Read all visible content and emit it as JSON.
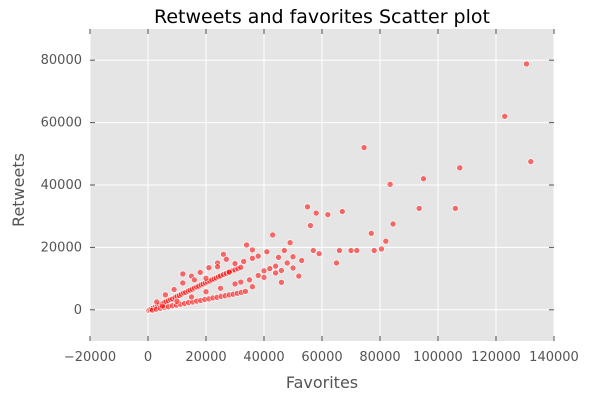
{
  "chart_data": {
    "type": "scatter",
    "title": "Retweets and favorites Scatter plot",
    "xlabel": "Favorites",
    "ylabel": "Retweets",
    "xlim": [
      -20000,
      140000
    ],
    "ylim": [
      -10000,
      90000
    ],
    "xticks": [
      -20000,
      0,
      20000,
      40000,
      60000,
      80000,
      100000,
      120000,
      140000
    ],
    "yticks": [
      0,
      20000,
      40000,
      60000,
      80000
    ],
    "grid": true,
    "colors": {
      "background": "#e5e5e5",
      "grid": "#ffffff",
      "marker": "#ff0000"
    },
    "series": [
      {
        "points": [
          [
            300,
            -200
          ],
          [
            700,
            100
          ],
          [
            1200,
            300
          ],
          [
            1800,
            600
          ],
          [
            2500,
            900
          ],
          [
            3200,
            1200
          ],
          [
            4000,
            1600
          ],
          [
            4800,
            1800
          ],
          [
            5500,
            2300
          ],
          [
            6200,
            2600
          ],
          [
            7000,
            2900
          ],
          [
            7800,
            3300
          ],
          [
            8500,
            3500
          ],
          [
            9300,
            3900
          ],
          [
            10000,
            4300
          ],
          [
            10800,
            4600
          ],
          [
            11500,
            5000
          ],
          [
            12300,
            5400
          ],
          [
            13000,
            5600
          ],
          [
            13800,
            6000
          ],
          [
            14500,
            6300
          ],
          [
            15300,
            6600
          ],
          [
            16000,
            7000
          ],
          [
            16800,
            7300
          ],
          [
            17500,
            7600
          ],
          [
            18300,
            8000
          ],
          [
            19000,
            8300
          ],
          [
            19800,
            8600
          ],
          [
            20500,
            9000
          ],
          [
            21300,
            9200
          ],
          [
            22000,
            9600
          ],
          [
            22800,
            9900
          ],
          [
            23500,
            10200
          ],
          [
            24300,
            10600
          ],
          [
            25000,
            10900
          ],
          [
            26000,
            11300
          ],
          [
            27000,
            11700
          ],
          [
            28000,
            12100
          ],
          [
            29000,
            12500
          ],
          [
            30000,
            12800
          ],
          [
            31000,
            13200
          ],
          [
            32000,
            13600
          ],
          [
            1500,
            -100
          ],
          [
            2800,
            200
          ],
          [
            4200,
            500
          ],
          [
            5600,
            800
          ],
          [
            7000,
            1000
          ],
          [
            8400,
            1300
          ],
          [
            9800,
            1500
          ],
          [
            11200,
            1800
          ],
          [
            12600,
            2000
          ],
          [
            14000,
            2300
          ],
          [
            15400,
            2500
          ],
          [
            16800,
            2800
          ],
          [
            18200,
            3000
          ],
          [
            19600,
            3300
          ],
          [
            21000,
            3500
          ],
          [
            22400,
            3800
          ],
          [
            23800,
            4000
          ],
          [
            25200,
            4300
          ],
          [
            26600,
            4500
          ],
          [
            28000,
            4800
          ],
          [
            29400,
            5000
          ],
          [
            30800,
            5300
          ],
          [
            32200,
            5600
          ],
          [
            33600,
            5900
          ],
          [
            3000,
            2500
          ],
          [
            6000,
            4800
          ],
          [
            9000,
            6500
          ],
          [
            12000,
            8600
          ],
          [
            15000,
            10800
          ],
          [
            18000,
            12000
          ],
          [
            21000,
            13500
          ],
          [
            24000,
            15000
          ],
          [
            27000,
            16200
          ],
          [
            30000,
            14800
          ],
          [
            33000,
            15500
          ],
          [
            36000,
            16500
          ],
          [
            5000,
            1200
          ],
          [
            10000,
            2700
          ],
          [
            15000,
            4100
          ],
          [
            20000,
            5800
          ],
          [
            25000,
            6900
          ],
          [
            30000,
            8300
          ],
          [
            35000,
            9600
          ],
          [
            38000,
            11000
          ],
          [
            40000,
            12500
          ],
          [
            42000,
            13200
          ],
          [
            44000,
            14000
          ],
          [
            46000,
            12600
          ],
          [
            34000,
            20800
          ],
          [
            36000,
            19200
          ],
          [
            38000,
            17200
          ],
          [
            41000,
            18600
          ],
          [
            43000,
            24000
          ],
          [
            45000,
            16800
          ],
          [
            47000,
            19000
          ],
          [
            49000,
            21500
          ],
          [
            50000,
            17000
          ],
          [
            52000,
            10800
          ],
          [
            53000,
            15800
          ],
          [
            48000,
            15000
          ],
          [
            12000,
            11500
          ],
          [
            16000,
            9600
          ],
          [
            20000,
            10100
          ],
          [
            24000,
            13800
          ],
          [
            26000,
            17800
          ],
          [
            28000,
            12100
          ],
          [
            32000,
            8900
          ],
          [
            36000,
            7400
          ],
          [
            40000,
            10400
          ],
          [
            44000,
            11800
          ],
          [
            46000,
            8800
          ],
          [
            50000,
            13400
          ],
          [
            55000,
            33000
          ],
          [
            56000,
            27000
          ],
          [
            57000,
            19000
          ],
          [
            58000,
            31000
          ],
          [
            59000,
            18000
          ],
          [
            62000,
            30500
          ],
          [
            65000,
            15000
          ],
          [
            66000,
            19000
          ],
          [
            67000,
            31500
          ],
          [
            70000,
            19000
          ],
          [
            72000,
            19000
          ],
          [
            74500,
            52000
          ],
          [
            77000,
            24500
          ],
          [
            78000,
            19000
          ],
          [
            80500,
            19500
          ],
          [
            82000,
            22000
          ],
          [
            83500,
            40200
          ],
          [
            84500,
            27500
          ],
          [
            93500,
            32500
          ],
          [
            95000,
            42000
          ],
          [
            106000,
            32500
          ],
          [
            107500,
            45500
          ],
          [
            123000,
            62000
          ],
          [
            130500,
            78800
          ],
          [
            132000,
            47500
          ]
        ]
      }
    ]
  }
}
